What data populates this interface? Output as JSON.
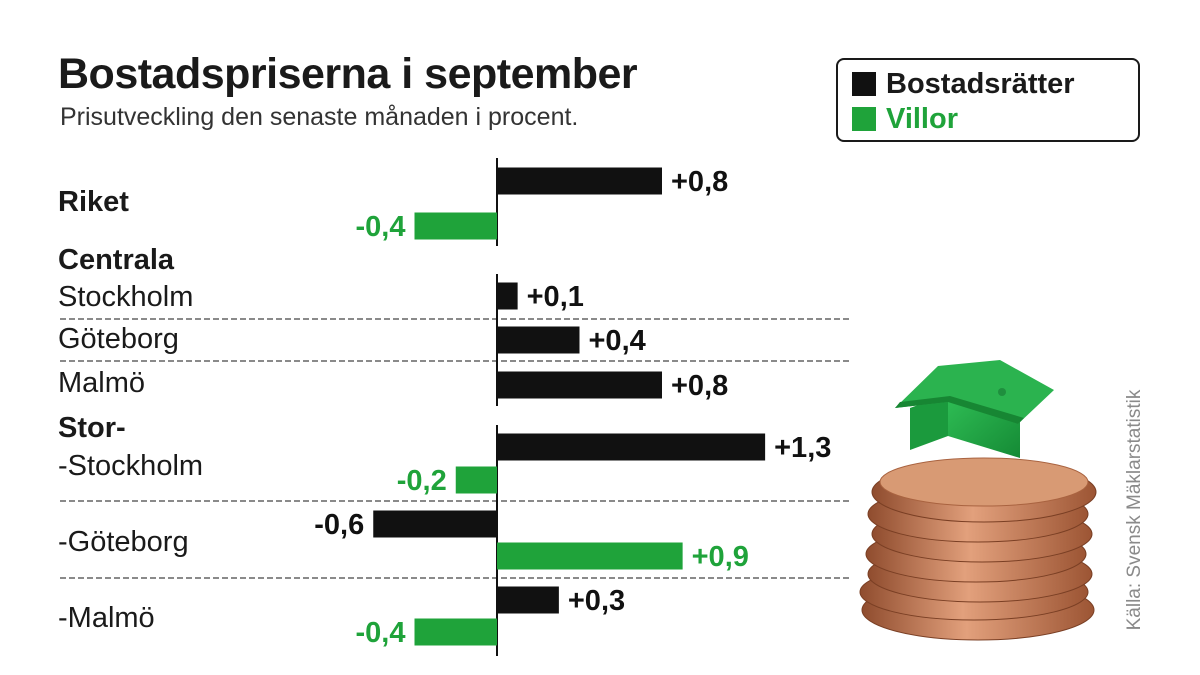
{
  "title": "Bostadspriserna i september",
  "subtitle": "Prisutveckling den senaste månaden i procent.",
  "source": "Källa: Svensk Mäklarstatistik",
  "colors": {
    "bostadsratter": "#111111",
    "villor": "#1fa33a",
    "text": "#1a1a1a"
  },
  "legend": [
    {
      "label": "Bostadsrätter",
      "color": "#111111"
    },
    {
      "label": "Villor",
      "color": "#1fa33a"
    }
  ],
  "labels": {
    "riket": "Riket",
    "centrala": "Centrala",
    "stockholm": "Stockholm",
    "goteborg": "Göteborg",
    "malmo": "Malmö",
    "stor": "Stor-",
    "stor_stockholm": "-Stockholm",
    "stor_goteborg": "-Göteborg",
    "stor_malmo": "-Malmö"
  },
  "chart_data": {
    "type": "bar",
    "orientation": "horizontal",
    "title": "Bostadspriserna i september",
    "subtitle": "Prisutveckling den senaste månaden i procent.",
    "categories": [
      "Riket",
      "Stockholm",
      "Göteborg",
      "Malmö",
      "Stor-Stockholm",
      "Stor-Göteborg",
      "Stor-Malmö"
    ],
    "series": [
      {
        "name": "Bostadsrätter",
        "color": "#111111",
        "values": [
          0.8,
          0.1,
          0.4,
          0.8,
          1.3,
          -0.6,
          0.3
        ],
        "value_labels": [
          "+0,8",
          "+0,1",
          "+0,4",
          "+0,8",
          "+1,3",
          "-0,6",
          "+0,3"
        ]
      },
      {
        "name": "Villor",
        "color": "#1fa33a",
        "values": [
          -0.4,
          null,
          null,
          null,
          -0.2,
          0.9,
          -0.4
        ],
        "value_labels": [
          "-0,4",
          null,
          null,
          null,
          "-0,2",
          "+0,9",
          "-0,4"
        ]
      }
    ],
    "legend_position": "top-right",
    "grid": false
  }
}
